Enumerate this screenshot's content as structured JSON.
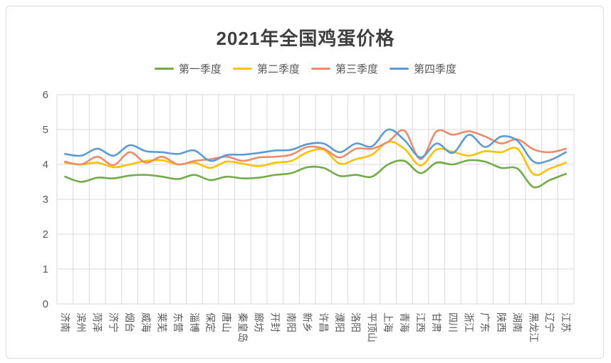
{
  "chart_data": {
    "type": "line",
    "title": "2021年全国鸡蛋价格",
    "categories": [
      "济南",
      "滨州",
      "菏泽",
      "济宁",
      "烟台",
      "威海",
      "莱芜",
      "东营",
      "淄博",
      "保定",
      "唐山",
      "秦皇岛",
      "廊坊",
      "开封",
      "南阳",
      "新乡",
      "许昌",
      "濮阳",
      "洛阳",
      "平顶山",
      "上海",
      "青海",
      "江西",
      "甘肃",
      "四川",
      "浙江",
      "广东",
      "陕西",
      "湖南",
      "黑龙江",
      "辽宁",
      "江苏"
    ],
    "series": [
      {
        "name": "第一季度",
        "color": "#70AD47",
        "values": [
          3.65,
          3.5,
          3.62,
          3.6,
          3.68,
          3.7,
          3.65,
          3.58,
          3.7,
          3.55,
          3.65,
          3.6,
          3.62,
          3.7,
          3.75,
          3.92,
          3.9,
          3.67,
          3.7,
          3.65,
          4.0,
          4.1,
          3.75,
          4.05,
          4.0,
          4.12,
          4.08,
          3.9,
          3.88,
          3.35,
          3.55,
          3.73
        ]
      },
      {
        "name": "第二季度",
        "color": "#FFC000",
        "values": [
          4.05,
          4.0,
          4.05,
          3.92,
          4.0,
          4.1,
          4.12,
          4.0,
          4.05,
          3.9,
          4.08,
          4.02,
          3.95,
          4.05,
          4.1,
          4.35,
          4.42,
          4.02,
          4.15,
          4.28,
          4.65,
          4.45,
          3.97,
          4.43,
          4.36,
          4.25,
          4.38,
          4.35,
          4.45,
          3.72,
          3.88,
          4.05
        ]
      },
      {
        "name": "第三季度",
        "color": "#EF8A6C",
        "values": [
          4.08,
          4.0,
          4.22,
          3.98,
          4.35,
          4.05,
          4.22,
          4.0,
          4.1,
          4.15,
          4.22,
          4.1,
          4.2,
          4.22,
          4.28,
          4.5,
          4.45,
          4.2,
          4.45,
          4.45,
          4.65,
          4.97,
          4.15,
          4.95,
          4.85,
          4.95,
          4.8,
          4.6,
          4.72,
          4.43,
          4.35,
          4.45
        ]
      },
      {
        "name": "第四季度",
        "color": "#5B9BD5",
        "values": [
          4.3,
          4.25,
          4.45,
          4.25,
          4.55,
          4.38,
          4.35,
          4.3,
          4.4,
          4.1,
          4.27,
          4.28,
          4.33,
          4.4,
          4.42,
          4.58,
          4.6,
          4.35,
          4.6,
          4.52,
          5.0,
          4.7,
          4.2,
          4.6,
          4.33,
          4.85,
          4.5,
          4.8,
          4.68,
          4.08,
          4.12,
          4.35
        ]
      }
    ],
    "xlabel": "",
    "ylabel": "",
    "ylim": [
      0,
      6
    ],
    "yticks": [
      0,
      1,
      2,
      3,
      4,
      5,
      6
    ],
    "grid": "both",
    "legend_position": "top",
    "line_style": "smooth",
    "x_label_rotation": 90
  },
  "theme": {
    "grid_color": "#d9d9d9",
    "axis_text_color": "#595959",
    "title_color": "#3f3f3f",
    "card_border_color": "#dcdcdc",
    "background": "#ffffff"
  }
}
